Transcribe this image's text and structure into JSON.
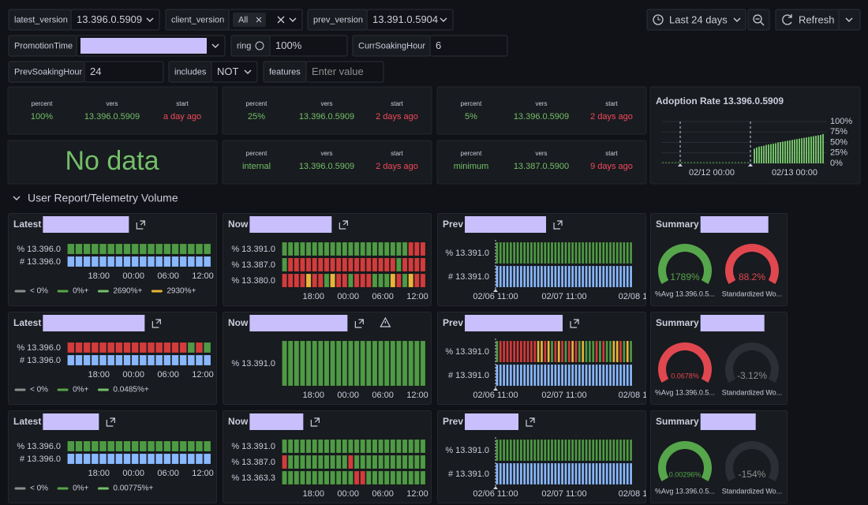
{
  "variables": [
    {
      "label": "latest_version",
      "value": "13.396.0.5909"
    },
    {
      "label": "client_version",
      "value": "All"
    },
    {
      "label": "prev_version",
      "value": "13.391.0.5904"
    },
    {
      "label": "PromotionTime"
    },
    {
      "label": "ring",
      "value": "100%"
    },
    {
      "label": "CurrSoakingHour",
      "value": "6"
    },
    {
      "label": "PrevSoakingHour",
      "value": "24"
    },
    {
      "label": "includes",
      "value": "NOT"
    },
    {
      "label": "features",
      "placeholder": "Enter value"
    }
  ],
  "time_range": "Last 24 days",
  "refresh": "Refresh",
  "stats": [
    {
      "fields": [
        {
          "label": "percent",
          "value": "100%"
        },
        {
          "label": "vers",
          "value": "13.396.0.5909"
        },
        {
          "label": "start",
          "value": "a day ago"
        }
      ]
    },
    {
      "fields": [
        {
          "label": "percent",
          "value": "25%"
        },
        {
          "label": "vers",
          "value": "13.396.0.5909"
        },
        {
          "label": "start",
          "value": "2 days ago"
        }
      ]
    },
    {
      "fields": [
        {
          "label": "percent",
          "value": "5%"
        },
        {
          "label": "vers",
          "value": "13.396.0.5909"
        },
        {
          "label": "start",
          "value": "2 days ago"
        }
      ]
    },
    {
      "fields": [
        {
          "label": "percent",
          "value": "internal"
        },
        {
          "label": "vers",
          "value": "13.396.0.5909"
        },
        {
          "label": "start",
          "value": "2 days ago"
        }
      ]
    },
    {
      "fields": [
        {
          "label": "percent",
          "value": "minimum"
        },
        {
          "label": "vers",
          "value": "13.387.0.5900"
        },
        {
          "label": "start",
          "value": "9 days ago"
        }
      ]
    }
  ],
  "no_data": "No data",
  "adoption": {
    "title": "Adoption Rate 13.396.0.5909",
    "color": "#73bf69",
    "ylim": [
      0,
      100
    ],
    "yticks": [
      {
        "value": 100,
        "label": "100%"
      },
      {
        "value": 75,
        "label": "75%"
      },
      {
        "value": 50,
        "label": "50%"
      },
      {
        "value": 25,
        "label": "25%"
      },
      {
        "value": 0,
        "label": "0%"
      }
    ],
    "xticks": [
      "02/12 00:00",
      "02/13 00:00"
    ],
    "values": [
      35,
      38,
      40,
      41,
      42,
      44,
      45,
      46,
      47,
      48,
      50,
      51,
      52,
      53,
      54,
      55,
      56,
      57,
      58,
      59,
      60,
      61,
      62,
      63,
      64,
      65,
      66,
      67,
      68,
      70
    ]
  },
  "section": "User Report/Telemetry Volume",
  "panels": [
    {
      "title": "Latest",
      "rows": [
        {
          "label": "% 13.396.0",
          "cells": "gggggggggggggggggg"
        },
        {
          "label": "# 13.396.0",
          "cells": "bbbbbbbbbbbbbbbbbb"
        }
      ],
      "xticks": [
        "18:00",
        "00:00",
        "06:00",
        "12:00"
      ],
      "legend": [
        {
          "label": "< 0%",
          "color": "#8e8e8e"
        },
        {
          "label": "0%+",
          "color": "#56a64b"
        },
        {
          "label": "2690%+",
          "color": "#73bf69"
        },
        {
          "label": "2930%+",
          "color": "#e6b434"
        }
      ]
    },
    {
      "title": "Now",
      "rows": [
        {
          "label": "% 13.391.0",
          "cells": "gggggggggggggggggggggrrr"
        },
        {
          "label": "% 13.387.0",
          "cells": "grrrrrrrrrrrrrrrrrrgrrrr"
        },
        {
          "label": "% 13.380.0",
          "cells": "rrrryrrgyrrgrrrgggyrgyrr"
        }
      ],
      "xticks": [
        "18:00",
        "00:00",
        "06:00",
        "12:00"
      ]
    },
    {
      "title": "Prev",
      "rows": [
        {
          "label": "% 13.391.0",
          "cells": "gggggggggggggggggggggggggggggggggggggggg"
        },
        {
          "label": "# 13.391.0",
          "cells": "bbbbbbbbbbbbbbbbbbbbbbbbbbbbbbbbbbbbbbbb"
        }
      ],
      "xticks": [
        "02/06 11:00",
        "02/07 11:00",
        "02/08 1"
      ]
    },
    {
      "title": "Summary",
      "gauges": [
        {
          "value": "1789%",
          "label": "%Avg 13.396.0.5...",
          "color": "#56a64b"
        },
        {
          "value": "88.2%",
          "label": "Standardized Wo...",
          "color": "#e0474f"
        }
      ]
    },
    {
      "title": "Latest",
      "rows": [
        {
          "label": "% 13.396.0",
          "cells": "rrrrrrrrrrrrrrrgrg"
        },
        {
          "label": "# 13.396.0",
          "cells": "bbbbbbbbbbbbbbbbbb"
        }
      ],
      "xticks": [
        "18:00",
        "00:00",
        "06:00",
        "12:00"
      ],
      "legend": [
        {
          "label": "< 0%",
          "color": "#8e8e8e"
        },
        {
          "label": "0%+",
          "color": "#56a64b"
        },
        {
          "label": "0.0485%+",
          "color": "#73bf69"
        }
      ]
    },
    {
      "title": "Now",
      "warning": true,
      "rows": [
        {
          "label": "% 13.391.0",
          "cells": "gggggggggggggggggggggggg"
        }
      ],
      "xticks": [
        "18:00",
        "00:00",
        "06:00",
        "12:00"
      ]
    },
    {
      "title": "Prev",
      "rows": [
        {
          "label": "% 13.391.0",
          "cells": "grrrrrrrrrrryyrygryrgryrgygggrgrggyyrgyg"
        },
        {
          "label": "# 13.391.0",
          "cells": "bbbbbbbbbbbbbbbbbbbbbbbbbbbbbbbbbbbbbbbb"
        }
      ],
      "xticks": [
        "02/06 11:00",
        "02/07 11:00",
        "02/08 1"
      ]
    },
    {
      "title": "Summary",
      "gauges": [
        {
          "value": "0.0678%",
          "label": "%Avg 13.396.0.5...",
          "color": "#e0474f"
        },
        {
          "value": "-3.12%",
          "label": "Standardized Wo..."
        }
      ]
    },
    {
      "title": "Latest",
      "rows": [
        {
          "label": "% 13.396.0",
          "cells": "gggggggggggggggggg"
        },
        {
          "label": "# 13.396.0",
          "cells": "bbbbbbbbbbbbbbbbbb"
        }
      ],
      "xticks": [
        "18:00",
        "00:00",
        "06:00",
        "12:00"
      ],
      "legend": [
        {
          "label": "< 0%",
          "color": "#8e8e8e"
        },
        {
          "label": "0%+",
          "color": "#56a64b"
        },
        {
          "label": "0.00775%+",
          "color": "#73bf69"
        }
      ]
    },
    {
      "title": "Now",
      "rows": [
        {
          "label": "% 13.391.0",
          "cells": "gggggggggggggggggggggggg"
        },
        {
          "label": "% 13.387.0",
          "cells": "rggggggggggrgggggggggggg"
        },
        {
          "label": "% 13.363.3",
          "cells": "ggggggggggggrrgggggggggg"
        }
      ],
      "xticks": [
        "18:00",
        "00:00",
        "06:00",
        "12:00"
      ]
    },
    {
      "title": "Prev",
      "rows": [
        {
          "label": "% 13.391.0",
          "cells": "gggggggggggggggggggggggggggggggggggggggg"
        },
        {
          "label": "# 13.391.0",
          "cells": "bbbbbbbbbbbbbbbbbbbbbbbbbbbbbbbbbbbbbbbb"
        }
      ],
      "xticks": [
        "02/06 11:00",
        "02/07 11:00",
        "02/08 1"
      ]
    },
    {
      "title": "Summary",
      "gauges": [
        {
          "value": "0.00296%",
          "label": "%Avg 13.396.0.5...",
          "color": "#56a64b"
        },
        {
          "value": "-154%",
          "label": "Standardized Wo..."
        }
      ]
    }
  ]
}
